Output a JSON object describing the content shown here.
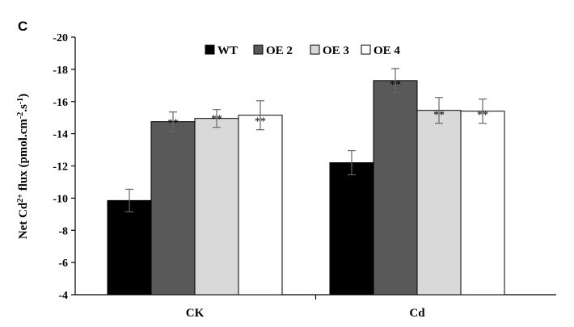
{
  "panel_label": "C",
  "chart_data": {
    "type": "bar",
    "categories": [
      "CK",
      "Cd"
    ],
    "series": [
      {
        "name": "WT",
        "color": "#000000",
        "values": [
          -9.85,
          -12.2
        ],
        "errors": [
          0.7,
          0.75
        ],
        "sig": [
          "",
          ""
        ]
      },
      {
        "name": "OE 2",
        "color": "#595959",
        "values": [
          -14.75,
          -17.3
        ],
        "errors": [
          0.6,
          0.75
        ],
        "sig": [
          "**",
          "**"
        ]
      },
      {
        "name": "OE 3",
        "color": "#d9d9d9",
        "values": [
          -14.95,
          -15.45
        ],
        "errors": [
          0.55,
          0.8
        ],
        "sig": [
          "**",
          "**"
        ]
      },
      {
        "name": "OE 4",
        "color": "#ffffff",
        "values": [
          -15.15,
          -15.4
        ],
        "errors": [
          0.9,
          0.75
        ],
        "sig": [
          "**",
          "**"
        ]
      }
    ],
    "ylabel_parts": [
      "Net Cd",
      "2+",
      " flux (pmol.cm",
      "-2",
      ".s",
      "-1",
      ")"
    ],
    "ylim": [
      -4,
      -20
    ],
    "yticks": [
      "-20",
      "-18",
      "-16",
      "-14",
      "-12",
      "-10",
      "-8",
      "-6",
      "-4"
    ],
    "ytick_values": [
      -20,
      -18,
      -16,
      -14,
      -12,
      -10,
      -8,
      -6,
      -4
    ],
    "legend_position": "top-center",
    "grid": false
  }
}
